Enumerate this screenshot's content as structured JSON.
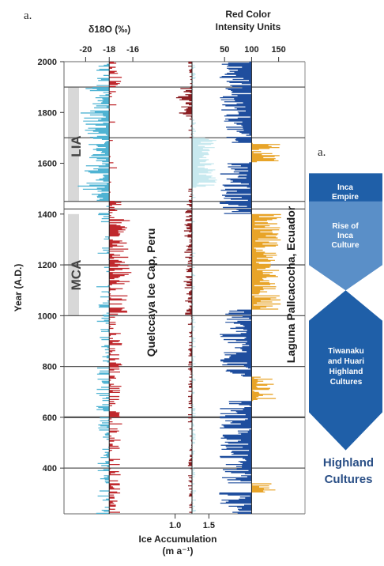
{
  "panel_left_label": "a.",
  "panel_right_label": "a.",
  "colors": {
    "d18o_negative": "#4fb3d3",
    "d18o_positive": "#c0282d",
    "accum_light": "#c8e9ef",
    "accum_dark": "#8b1e22",
    "red_color_blue": "#1f4e9e",
    "red_color_orange": "#e8a428",
    "culture_blue": "#1f5fa8",
    "period_bar": "#d8d8d8"
  },
  "period_labels": {
    "lia": "LIA",
    "mca": "MCA"
  },
  "core_labels": {
    "quelccaya": "Quelccaya Ice Cap, Peru",
    "pallcacocha": "Laguna Pallcacocha, Ecuador"
  },
  "culture_labels": {
    "inca_empire": [
      "Inca",
      "Empire"
    ],
    "rise_inca": [
      "Rise of",
      "Inca",
      "Culture"
    ],
    "tiwanaku": [
      "Tiwanaku",
      "and Huari",
      "Highland",
      "Cultures"
    ],
    "highland": [
      "Highland",
      "Cultures"
    ]
  },
  "chart_data": {
    "type": "area",
    "y_axis": {
      "label": "Year (A.D.)",
      "ticks": [
        400,
        600,
        800,
        1000,
        1200,
        1400,
        1600,
        1800,
        2000
      ],
      "range": [
        220,
        2000
      ]
    },
    "horizontal_lines_years": [
      1900,
      1700,
      1450,
      1420,
      1200,
      1000,
      800,
      600,
      400
    ],
    "series": [
      {
        "name": "δ18O (‰)",
        "axis_label": "δ18O (‰)",
        "ticks": [
          -20,
          -18,
          -16
        ],
        "range": [
          -21.5,
          -14.8
        ],
        "baseline": -18
      },
      {
        "name": "Ice Accumulation",
        "axis_label_lines": [
          "Ice Accumulation",
          "(m a⁻¹)"
        ],
        "ticks": [
          "1.0",
          "1.5"
        ],
        "range": [
          0.7,
          1.8
        ],
        "baseline": 1.25
      },
      {
        "name": "Red Color Intensity Units",
        "axis_label_lines": [
          "Red Color",
          "Intensity Units"
        ],
        "ticks": [
          50,
          100,
          150
        ],
        "range": [
          0,
          190
        ],
        "baseline": 100
      }
    ]
  }
}
